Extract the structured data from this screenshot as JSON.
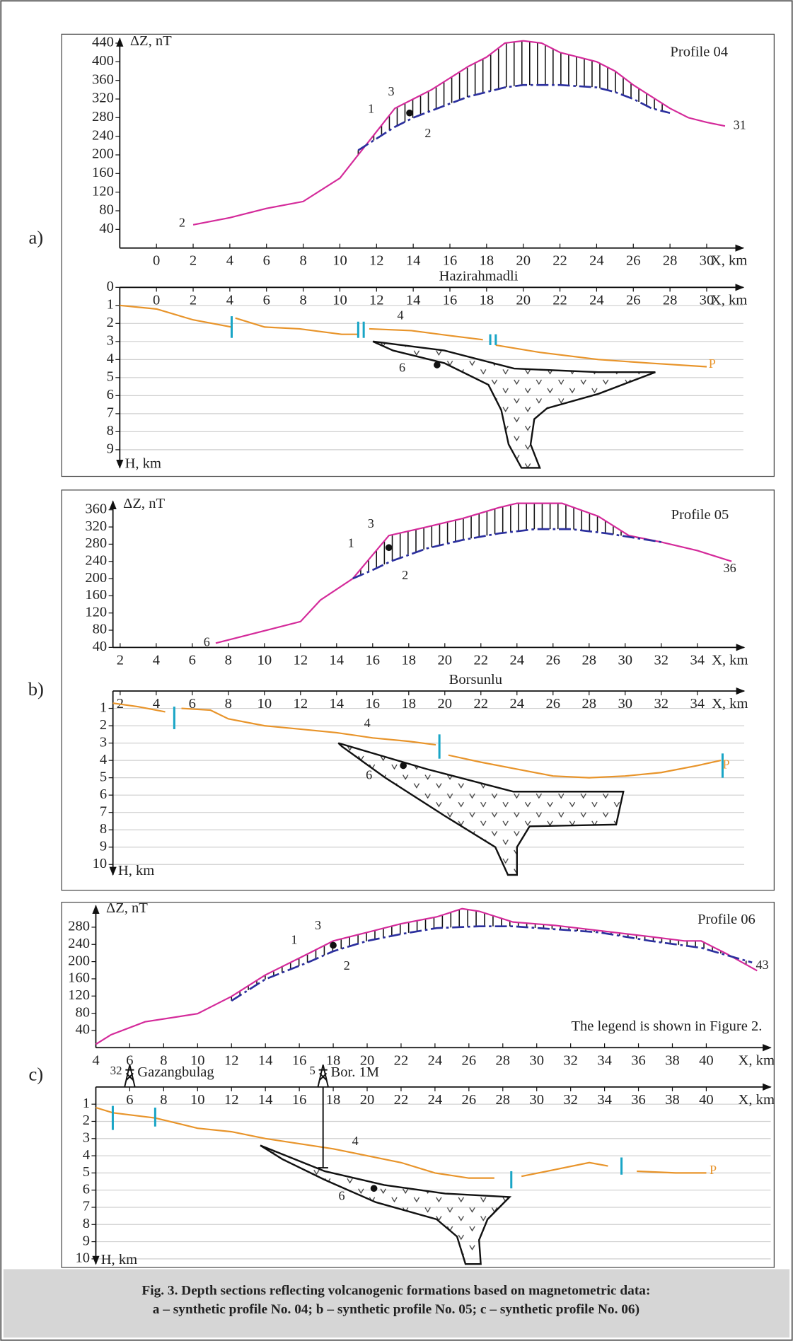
{
  "chart_data": [
    {
      "type": "line",
      "title": "Profile 04",
      "xlabel": "X, km",
      "ylabel": "ΔZ, nT",
      "xlim": [
        -2,
        32
      ],
      "ylim": [
        0,
        450
      ],
      "xticks": [
        0,
        2,
        4,
        6,
        8,
        10,
        12,
        14,
        16,
        18,
        20,
        22,
        24,
        26,
        28,
        30
      ],
      "yticks": [
        40,
        80,
        120,
        160,
        200,
        240,
        280,
        320,
        360,
        400,
        440
      ],
      "series": [
        {
          "color": "#d42a9a",
          "x": [
            2,
            4,
            6,
            8,
            10,
            11,
            12,
            13,
            14,
            15,
            16,
            17,
            18,
            19,
            20,
            21,
            22,
            24,
            25,
            26,
            28,
            29,
            30,
            31
          ],
          "values": [
            50,
            65,
            85,
            100,
            150,
            200,
            250,
            300,
            320,
            340,
            365,
            390,
            410,
            440,
            445,
            440,
            420,
            400,
            380,
            350,
            300,
            280,
            270,
            262
          ]
        },
        {
          "color": "#2b2f9e",
          "dashed": true,
          "x": [
            11,
            12,
            13,
            14,
            15,
            16,
            17,
            18,
            19,
            20,
            22,
            24,
            25,
            26,
            27,
            28
          ],
          "values": [
            210,
            235,
            260,
            280,
            295,
            310,
            325,
            335,
            345,
            350,
            350,
            345,
            335,
            320,
            300,
            290
          ]
        }
      ],
      "points": [
        {
          "x": 13.8,
          "y": 290
        }
      ],
      "annotations": [
        {
          "text": "1",
          "x": 11.7,
          "y": 297
        },
        {
          "text": "3",
          "x": 12.8,
          "y": 334
        },
        {
          "text": "2",
          "x": 14.8,
          "y": 244
        },
        {
          "text": "2",
          "x": 1.4,
          "y": 52
        },
        {
          "text": "31",
          "x": 31.8,
          "y": 262
        }
      ]
    },
    {
      "type": "section",
      "title": "Hazirahmadli",
      "xlabel": "X, km",
      "ylabel": "H, km",
      "invert_y": true,
      "grid": true,
      "xlim": [
        -2,
        32
      ],
      "ylim": [
        0,
        10
      ],
      "xticks": [
        0,
        2,
        4,
        6,
        8,
        10,
        12,
        14,
        16,
        18,
        20,
        22,
        24,
        26,
        28,
        30
      ],
      "yticks": [
        0,
        1,
        2,
        3,
        4,
        5,
        6,
        7,
        8,
        9
      ],
      "series": [
        {
          "color": "#e8942a",
          "x": [
            -2,
            0,
            2,
            4.1,
            null,
            4.3,
            5.9,
            7.8,
            10.1,
            11,
            null,
            11.6,
            13.9,
            16.2,
            17.8,
            null,
            18.5,
            20.9,
            24.1,
            26.9,
            30
          ],
          "values": [
            1.0,
            1.2,
            1.8,
            2.2,
            null,
            1.7,
            2.2,
            2.3,
            2.6,
            2.6,
            null,
            2.3,
            2.4,
            2.7,
            2.9,
            null,
            3.2,
            3.6,
            4.0,
            4.2,
            4.4
          ]
        }
      ],
      "bodies": [
        {
          "x": [
            11.8,
            15.7,
            19.5,
            24.1,
            27.2,
            24.1,
            21.3,
            20.6,
            20.4,
            20.9,
            19.9,
            19.2,
            18.8,
            18.1,
            15.7,
            12.9
          ],
          "values": [
            3.0,
            3.5,
            4.5,
            4.7,
            4.7,
            5.9,
            6.7,
            7.3,
            8.7,
            10,
            10,
            8.7,
            6.8,
            5.4,
            4.2,
            3.5
          ]
        }
      ],
      "faults": [
        {
          "x": 4.1,
          "top": 1.6,
          "bottom": 2.8
        },
        {
          "x": 11,
          "top": 1.9,
          "bottom": 2.8
        },
        {
          "x": 11.3,
          "top": 1.9,
          "bottom": 2.8
        },
        {
          "x": 18.2,
          "top": 2.6,
          "bottom": 3.2
        },
        {
          "x": 18.5,
          "top": 2.6,
          "bottom": 3.2
        }
      ],
      "points": [
        {
          "x": 15.3,
          "y": 4.3
        }
      ],
      "annotations": [
        {
          "text": "4",
          "x": 13.3,
          "y": 1.6
        },
        {
          "text": "6",
          "x": 13.4,
          "y": 4.5
        },
        {
          "text": "P",
          "x": 30.3,
          "y": 4.3,
          "color": "#e8942a"
        }
      ]
    },
    {
      "type": "line",
      "title": "Profile 05",
      "xlabel": "X, km",
      "ylabel": "ΔZ, nT",
      "xlim": [
        1.6,
        36.6
      ],
      "ylim": [
        40,
        380
      ],
      "xticks": [
        2,
        4,
        6,
        8,
        10,
        12,
        14,
        16,
        18,
        20,
        22,
        24,
        26,
        28,
        30,
        32,
        34
      ],
      "yticks": [
        40,
        80,
        120,
        160,
        200,
        240,
        280,
        320,
        360
      ],
      "series": [
        {
          "color": "#d42a9a",
          "x": [
            7.3,
            12,
            13.1,
            14.9,
            16.9,
            19,
            21,
            23,
            24,
            26.5,
            28.5,
            30.2,
            32,
            34,
            35.9
          ],
          "values": [
            50,
            100,
            150,
            200,
            300,
            320,
            340,
            365,
            375,
            375,
            345,
            300,
            285,
            265,
            240
          ]
        },
        {
          "color": "#2b2f9e",
          "dashed": true,
          "x": [
            14.9,
            16,
            17,
            19,
            21,
            23,
            25,
            27,
            29,
            30.5,
            32
          ],
          "values": [
            200,
            220,
            240,
            270,
            290,
            305,
            315,
            315,
            305,
            295,
            285
          ]
        }
      ],
      "points": [
        {
          "x": 16.9,
          "y": 272
        }
      ],
      "annotations": [
        {
          "text": "1",
          "x": 14.8,
          "y": 280
        },
        {
          "text": "3",
          "x": 15.9,
          "y": 325
        },
        {
          "text": "2",
          "x": 17.8,
          "y": 205
        },
        {
          "text": "6",
          "x": 6.8,
          "y": 50
        },
        {
          "text": "36",
          "x": 35.8,
          "y": 222
        }
      ]
    },
    {
      "type": "section",
      "title": "Borsunlu",
      "xlabel": "X, km",
      "ylabel": "H, km",
      "invert_y": true,
      "grid": true,
      "xlim": [
        1.6,
        36.6
      ],
      "ylim": [
        0,
        10.6
      ],
      "xticks": [
        2,
        4,
        6,
        8,
        10,
        12,
        14,
        16,
        18,
        20,
        22,
        24,
        26,
        28,
        30,
        32,
        34
      ],
      "yticks": [
        1,
        2,
        3,
        4,
        5,
        6,
        7,
        8,
        9,
        10
      ],
      "series": [
        {
          "color": "#e8942a",
          "x": [
            1.6,
            3,
            4.5,
            null,
            5.4,
            7,
            8,
            10,
            12,
            14,
            16,
            18,
            19.5,
            null,
            20.2,
            22,
            24,
            26,
            28,
            30,
            32,
            34,
            35.3
          ],
          "values": [
            0.7,
            0.9,
            1.2,
            null,
            1.0,
            1.1,
            1.6,
            2.0,
            2.2,
            2.4,
            2.7,
            2.9,
            3.1,
            null,
            3.7,
            4.1,
            4.5,
            4.9,
            5.0,
            4.9,
            4.7,
            4.3,
            4.0
          ]
        }
      ],
      "bodies": [
        {
          "x": [
            14.1,
            19.0,
            23.8,
            29.9,
            29.5,
            24.7,
            24.0,
            24.0,
            23.5,
            22.8,
            20,
            16.7,
            14.3
          ],
          "values": [
            3.0,
            4.5,
            5.8,
            5.8,
            7.7,
            7.8,
            9.0,
            10.6,
            10.6,
            9.0,
            7.2,
            5.0,
            3.2
          ]
        }
      ],
      "faults": [
        {
          "x": 5.0,
          "top": 0.9,
          "bottom": 2.2
        },
        {
          "x": 19.7,
          "top": 2.5,
          "bottom": 3.9
        },
        {
          "x": 35.4,
          "top": 3.6,
          "bottom": 5.0
        }
      ],
      "points": [
        {
          "x": 17.7,
          "y": 4.3
        }
      ],
      "annotations": [
        {
          "text": "4",
          "x": 15.7,
          "y": 1.9
        },
        {
          "text": "6",
          "x": 15.8,
          "y": 4.9
        },
        {
          "text": "P",
          "x": 35.6,
          "y": 4.3,
          "color": "#e8942a"
        }
      ]
    },
    {
      "type": "line",
      "title": "Profile 06",
      "xlabel": "X, km",
      "ylabel": "ΔZ, nT",
      "note": "The legend is shown in Figure 2.",
      "xlim": [
        4,
        43.8
      ],
      "ylim": [
        0,
        330
      ],
      "xticks": [
        4,
        6,
        8,
        10,
        12,
        14,
        16,
        18,
        20,
        22,
        24,
        26,
        28,
        30,
        32,
        34,
        36,
        38,
        40
      ],
      "yticks": [
        40,
        80,
        120,
        160,
        200,
        240,
        280
      ],
      "series": [
        {
          "color": "#d42a9a",
          "x": [
            4,
            4.9,
            6.9,
            10,
            12,
            14,
            16.5,
            18,
            20,
            22,
            24.1,
            25.6,
            26.6,
            28.6,
            31.1,
            33.7,
            36.7,
            38.7,
            39.7,
            41.2,
            43
          ],
          "values": [
            8,
            30,
            60,
            79,
            119,
            169,
            218,
            248,
            268,
            288,
            304,
            323,
            317,
            292,
            284,
            272,
            258,
            248,
            248,
            218,
            179
          ]
        },
        {
          "color": "#2b2f9e",
          "dashed": true,
          "x": [
            12,
            14,
            16.5,
            18,
            20,
            22,
            24.1,
            26.6,
            28.6,
            33.7,
            36.7,
            39.7,
            42.7
          ],
          "values": [
            109,
            159,
            198,
            224,
            248,
            264,
            278,
            282,
            282,
            268,
            248,
            232,
            198
          ]
        }
      ],
      "points": [
        {
          "x": 18,
          "y": 238
        }
      ],
      "annotations": [
        {
          "text": "1",
          "x": 15.7,
          "y": 248
        },
        {
          "text": "3",
          "x": 17.1,
          "y": 282
        },
        {
          "text": "2",
          "x": 18.8,
          "y": 188
        },
        {
          "text": "43",
          "x": 43.3,
          "y": 190
        }
      ]
    },
    {
      "type": "section",
      "xlabel": "X, km",
      "ylabel": "H, km",
      "invert_y": true,
      "grid": true,
      "xlim": [
        4,
        43.8
      ],
      "ylim": [
        0,
        10.3
      ],
      "xticks": [
        6,
        8,
        10,
        12,
        14,
        16,
        18,
        20,
        22,
        24,
        26,
        28,
        30,
        32,
        34,
        36,
        38,
        40
      ],
      "yticks": [
        1,
        2,
        3,
        4,
        5,
        6,
        7,
        8,
        9,
        10
      ],
      "series": [
        {
          "color": "#e8942a",
          "x": [
            4,
            5.0,
            7.5,
            10,
            12,
            14,
            16,
            18,
            20,
            22,
            24,
            26,
            27.5,
            null,
            29.1,
            31.1,
            33.1,
            34.2,
            null,
            35.9,
            38.2,
            40
          ],
          "values": [
            1.2,
            1.5,
            1.8,
            2.4,
            2.6,
            3.0,
            3.3,
            3.6,
            4.0,
            4.4,
            5.0,
            5.3,
            5.3,
            null,
            5.2,
            4.8,
            4.4,
            4.6,
            null,
            4.9,
            5.0,
            5.0
          ]
        }
      ],
      "bodies": [
        {
          "x": [
            13.7,
            17.5,
            21,
            24.6,
            28.4,
            27.1,
            26.6,
            26.7,
            25.8,
            25.3,
            24.1,
            20.5,
            17.5,
            15
          ],
          "values": [
            3.4,
            4.9,
            5.7,
            6.2,
            6.4,
            7.7,
            8.9,
            10.3,
            10.3,
            8.7,
            7.7,
            6.7,
            5.4,
            4.2
          ]
        }
      ],
      "faults": [
        {
          "x": 5.0,
          "top": 1.1,
          "bottom": 2.5
        },
        {
          "x": 7.5,
          "top": 1.2,
          "bottom": 2.3
        },
        {
          "x": 28.5,
          "top": 4.9,
          "bottom": 5.9
        },
        {
          "x": 35,
          "top": 4.1,
          "bottom": 5.1
        }
      ],
      "wells": [
        {
          "number": "32",
          "name": "Gazangbulag",
          "x": 6.0
        },
        {
          "number": "5",
          "name": "Bor. 1M",
          "x": 17.4,
          "depth": 4.7
        }
      ],
      "points": [
        {
          "x": 20.4,
          "y": 5.9
        }
      ],
      "annotations": [
        {
          "text": "4",
          "x": 19.3,
          "y": 3.2
        },
        {
          "text": "6",
          "x": 18.5,
          "y": 6.4
        },
        {
          "text": "P",
          "x": 40.4,
          "y": 4.9,
          "color": "#e8942a"
        }
      ]
    }
  ],
  "panel_labels": [
    "a)",
    "b)",
    "c)"
  ],
  "caption": [
    "Fig. 3. Depth sections reflecting volcanogenic formations based on magnetometric data:",
    "a – synthetic profile No. 04; b – synthetic profile No. 05; c – synthetic profile No. 06)"
  ]
}
